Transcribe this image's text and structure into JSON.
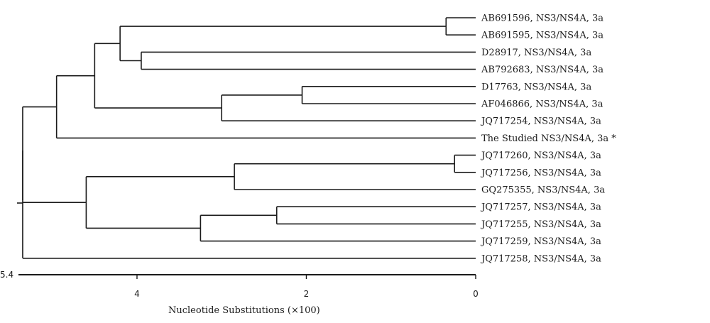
{
  "tree": {
    "leaves": [
      "AB691596, NS3/NS4A, 3a",
      "AB691595, NS3/NS4A, 3a",
      "D28917, NS3/NS4A, 3a",
      "AB792683, NS3/NS4A, 3a",
      "D17763, NS3/NS4A, 3a",
      "AF046866, NS3/NS4A, 3a",
      "JQ717254, NS3/NS4A, 3a",
      "The Studied NS3/NS4A, 3a *",
      "JQ717260, NS3/NS4A, 3a",
      "JQ717256, NS3/NS4A, 3a",
      "GQ275355, NS3/NS4A, 3a",
      "JQ717257, NS3/NS4A, 3a",
      "JQ717255, NS3/NS4A, 3a",
      "JQ717259, NS3/NS4A, 3a",
      "JQ717258, NS3/NS4A, 3a"
    ],
    "nodes": [
      {
        "id": "n1",
        "depth": 0.35,
        "children": [
          "L0",
          "L1"
        ]
      },
      {
        "id": "n2",
        "depth": 3.95,
        "children": [
          "L2",
          "L3"
        ]
      },
      {
        "id": "n3",
        "depth": 4.2,
        "children": [
          "n1",
          "n2"
        ]
      },
      {
        "id": "n4",
        "depth": 2.05,
        "children": [
          "L4",
          "L5"
        ]
      },
      {
        "id": "n5",
        "depth": 3.0,
        "children": [
          "n4",
          "L6"
        ]
      },
      {
        "id": "n6",
        "depth": 4.5,
        "children": [
          "n3",
          "n5"
        ]
      },
      {
        "id": "n7",
        "depth": 4.95,
        "children": [
          "n6",
          "L7"
        ]
      },
      {
        "id": "n8",
        "depth": 0.25,
        "children": [
          "L8",
          "L9"
        ]
      },
      {
        "id": "n9",
        "depth": 2.85,
        "children": [
          "n8",
          "L10"
        ]
      },
      {
        "id": "n10",
        "depth": 2.35,
        "children": [
          "L11",
          "L12"
        ]
      },
      {
        "id": "n11",
        "depth": 3.25,
        "children": [
          "n10",
          "L13"
        ]
      },
      {
        "id": "n12",
        "depth": 4.6,
        "children": [
          "n9",
          "n11"
        ]
      },
      {
        "id": "n13",
        "depth": 5.35,
        "children": [
          "n7",
          "n12",
          "L14"
        ]
      }
    ],
    "root": "n13"
  },
  "axis": {
    "min": 0,
    "max": 5.4,
    "ticks": [
      {
        "value": 4,
        "label": "4"
      },
      {
        "value": 2,
        "label": "2"
      },
      {
        "value": 0,
        "label": "0"
      }
    ],
    "end_label": "5.4",
    "title": "Nucleotide Substitutions (×100)"
  }
}
